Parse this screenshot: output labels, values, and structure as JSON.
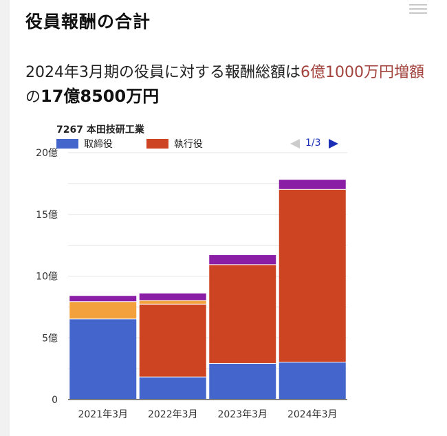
{
  "heading": "役員報酬の合計",
  "headline": {
    "part1": "2024年3月期の役員に対する報酬総額は",
    "increase": "6億1000万円増額",
    "part2": "の",
    "total": "17億8500万円"
  },
  "pager": {
    "label": "1/3"
  },
  "icons": {
    "menu": "hamburger-menu-icon",
    "prev": "triangle-left-icon",
    "next": "triangle-right-icon"
  },
  "chart_data": {
    "type": "bar",
    "stacked": true,
    "title": "7267 本田技研工業",
    "categories": [
      "2021年3月",
      "2022年3月",
      "2023年3月",
      "2024年3月"
    ],
    "series": [
      {
        "name": "取締役",
        "color": "#4466cc",
        "values": [
          6.5,
          1.8,
          2.9,
          3.0
        ]
      },
      {
        "name": "執行役",
        "color": "#cc4422",
        "values": [
          0,
          5.9,
          8.0,
          14.0
        ]
      },
      {
        "name": "",
        "color": "#f2a13c",
        "values": [
          1.4,
          0.3,
          0,
          0
        ]
      },
      {
        "name": "",
        "color": "#8a1fa6",
        "values": [
          0.5,
          0.6,
          0.8,
          0.8
        ]
      }
    ],
    "ylim": [
      0,
      20
    ],
    "yticks": [
      0,
      5,
      10,
      15,
      20
    ],
    "ytick_labels": [
      "0",
      "5億",
      "10億",
      "15億",
      "20億"
    ],
    "grid": true,
    "legend_position": "top-left"
  }
}
